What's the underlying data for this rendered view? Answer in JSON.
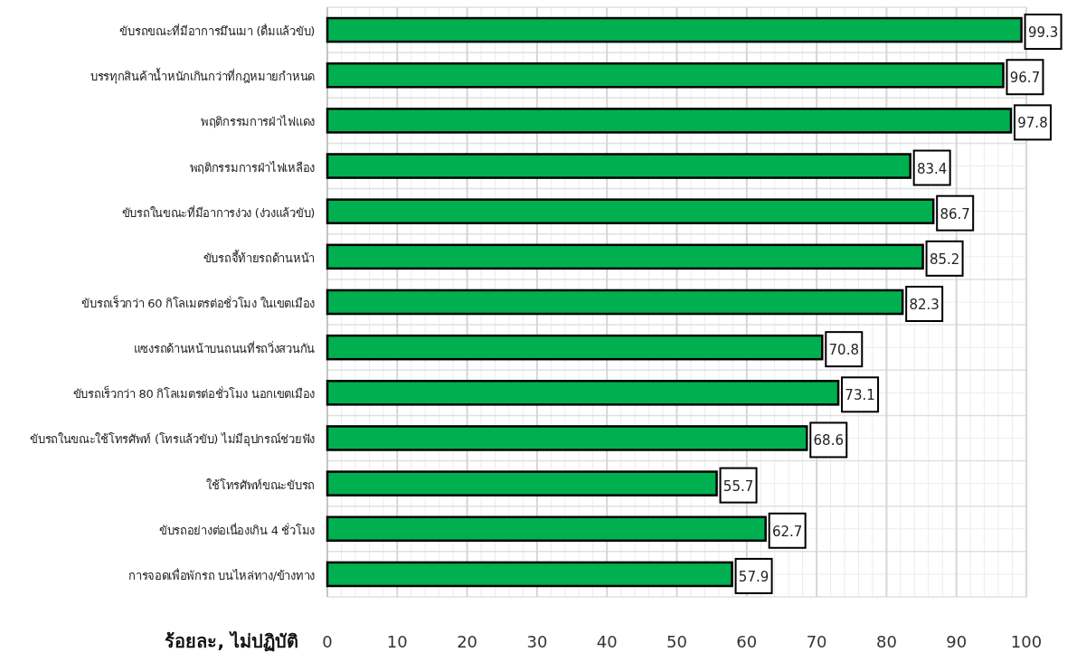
{
  "chart_data": {
    "type": "bar",
    "orientation": "horizontal",
    "xlabel": "ร้อยละ, ไม่ปฏิบัติ",
    "categories": [
      "ขับรถขณะที่มีอาการมึนเมา (ดื่มแล้วขับ)",
      "บรรทุกสินค้าน้ำหนักเกินกว่าที่กฎหมายกำหนด",
      "พฤติกรรมการฝ่าไฟแดง",
      "พฤติกรรมการฝ่าไฟเหลือง",
      "ขับรถในขณะที่มีอาการง่วง (ง่วงแล้วขับ)",
      "ขับรถจี้ท้ายรถด้านหน้า",
      "ขับรถเร็วกว่า 60 กิโลเมตรต่อชั่วโมง ในเขตเมือง",
      "แซงรถด้านหน้าบนถนนที่รถวิ่งสวนกัน",
      "ขับรถเร็วกว่า 80 กิโลเมตรต่อชั่วโมง นอกเขตเมือง",
      "ขับรถในขณะใช้โทรศัพท์ (โทรแล้วขับ) ไม่มีอุปกรณ์ช่วยฟัง",
      "ใช้โทรศัพท์ขณะขับรถ",
      "ขับรถอย่างต่อเนื่องเกิน 4 ชั่วโมง",
      "การจอดเพื่อพักรถ บนไหล่ทาง/ข้างทาง"
    ],
    "values": [
      99.3,
      96.7,
      97.8,
      83.4,
      86.7,
      85.2,
      82.3,
      70.8,
      73.1,
      68.6,
      55.7,
      62.7,
      57.9
    ],
    "color": "#00b050",
    "data_labels": true,
    "grid": true,
    "xlim": [
      0,
      100
    ],
    "xticks": [
      0,
      10,
      20,
      30,
      40,
      50,
      60,
      70,
      80,
      90,
      100
    ]
  }
}
